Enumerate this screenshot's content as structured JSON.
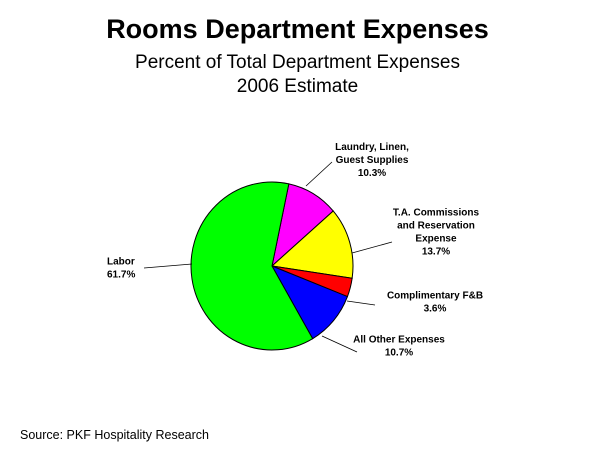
{
  "chart_data": {
    "type": "pie",
    "title": "Rooms Department Expenses",
    "subtitle": "Percent of Total Department Expenses",
    "subtitle2": "2006 Estimate",
    "slices": [
      {
        "label": "Laundry, Linen,\nGuest Supplies",
        "pct_text": "10.3%",
        "value": 10.3,
        "color": "#ff00ff"
      },
      {
        "label": "T.A. Commissions\nand Reservation\nExpense",
        "pct_text": "13.7%",
        "value": 13.7,
        "color": "#ffff00"
      },
      {
        "label": "Complimentary F&B",
        "pct_text": "3.6%",
        "value": 3.6,
        "color": "#ff0000"
      },
      {
        "label": "All Other Expenses",
        "pct_text": "10.7%",
        "value": 10.7,
        "color": "#0000ff"
      },
      {
        "label": "Labor",
        "pct_text": "61.7%",
        "value": 61.7,
        "color": "#00ff00"
      }
    ]
  },
  "source": "Source: PKF Hospitality Research"
}
